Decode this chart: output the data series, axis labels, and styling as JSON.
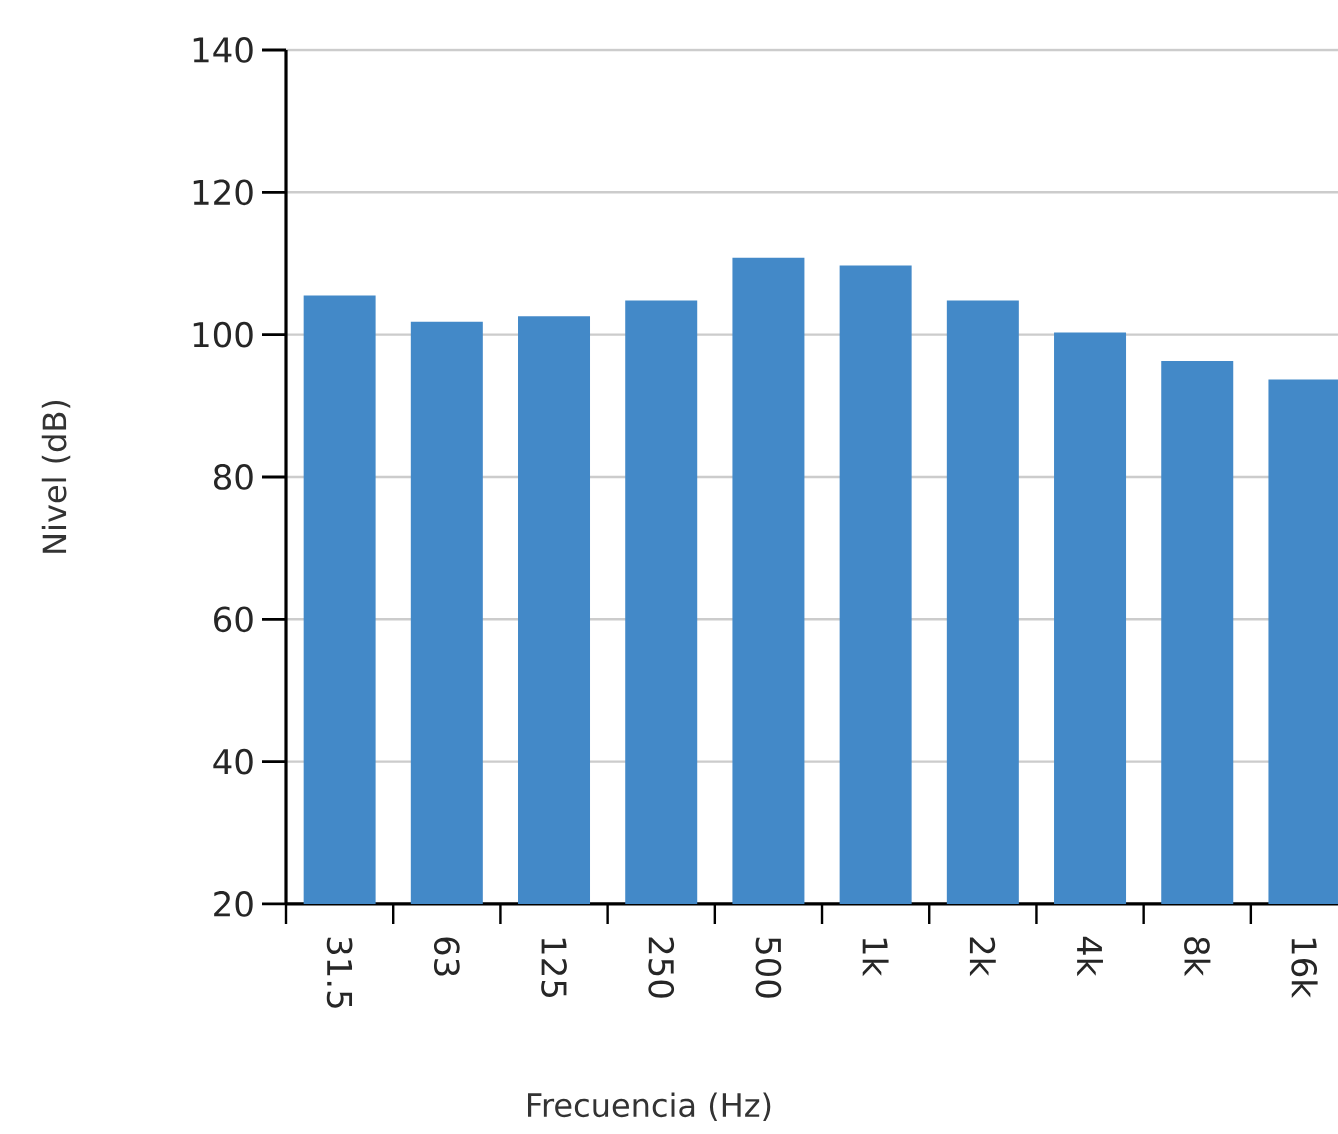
{
  "chart_data": {
    "type": "bar",
    "xlabel": "Frecuencia (Hz)",
    "ylabel": "Nivel (dB)",
    "categories": [
      "31.5",
      "63",
      "125",
      "250",
      "500",
      "1k",
      "2k",
      "4k",
      "8k",
      "16k"
    ],
    "values": [
      105.5,
      101.8,
      102.6,
      104.8,
      110.8,
      109.7,
      104.8,
      100.3,
      96.3,
      93.7
    ],
    "color": "#4389c8",
    "ylim": [
      20,
      140
    ],
    "yticks": [
      20,
      40,
      60,
      80,
      100,
      120,
      140
    ],
    "grid": "y"
  }
}
